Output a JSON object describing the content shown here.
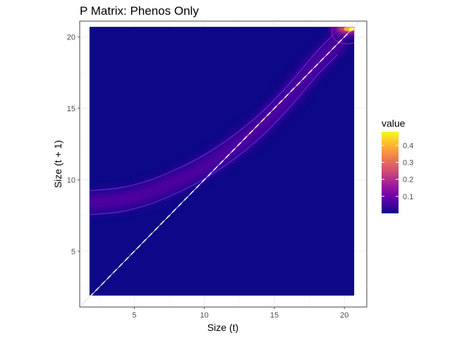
{
  "chart_data": {
    "type": "heatmap",
    "title": "P Matrix: Phenos Only",
    "xlabel": "Size (t)",
    "ylabel": "Size (t + 1)",
    "xlim": [
      1.1,
      21.6
    ],
    "ylim": [
      1.1,
      21.1
    ],
    "x_ticks": [
      5,
      10,
      15,
      20
    ],
    "y_ticks": [
      5,
      10,
      15,
      20
    ],
    "data_extent": {
      "x": [
        1.8,
        20.7
      ],
      "y": [
        1.9,
        20.7
      ]
    },
    "grid": true,
    "reference_line": {
      "type": "identity",
      "style": "dashed",
      "color": "#f2f2f2"
    },
    "ridge_centerline": [
      {
        "x": 1.8,
        "y": 8.4
      },
      {
        "x": 4,
        "y": 8.6
      },
      {
        "x": 6,
        "y": 9.1
      },
      {
        "x": 8,
        "y": 9.9
      },
      {
        "x": 10,
        "y": 10.9
      },
      {
        "x": 12,
        "y": 12.2
      },
      {
        "x": 14,
        "y": 13.8
      },
      {
        "x": 16,
        "y": 15.8
      },
      {
        "x": 18,
        "y": 18.1
      },
      {
        "x": 19.5,
        "y": 19.6
      }
    ],
    "ridge_peak_value": 0.1,
    "hotspot": {
      "x": 20.2,
      "y": 20.6,
      "value": 0.47
    },
    "fill_scale": {
      "name": "value",
      "palette": "plasma",
      "limits": [
        0,
        0.48
      ],
      "breaks": [
        0.1,
        0.2,
        0.3,
        0.4
      ],
      "break_labels": [
        "0.1",
        "0.2",
        "0.3",
        "0.4"
      ],
      "low_color": "#0d0887",
      "high_color": "#f0f921"
    },
    "legend_position": "right"
  }
}
